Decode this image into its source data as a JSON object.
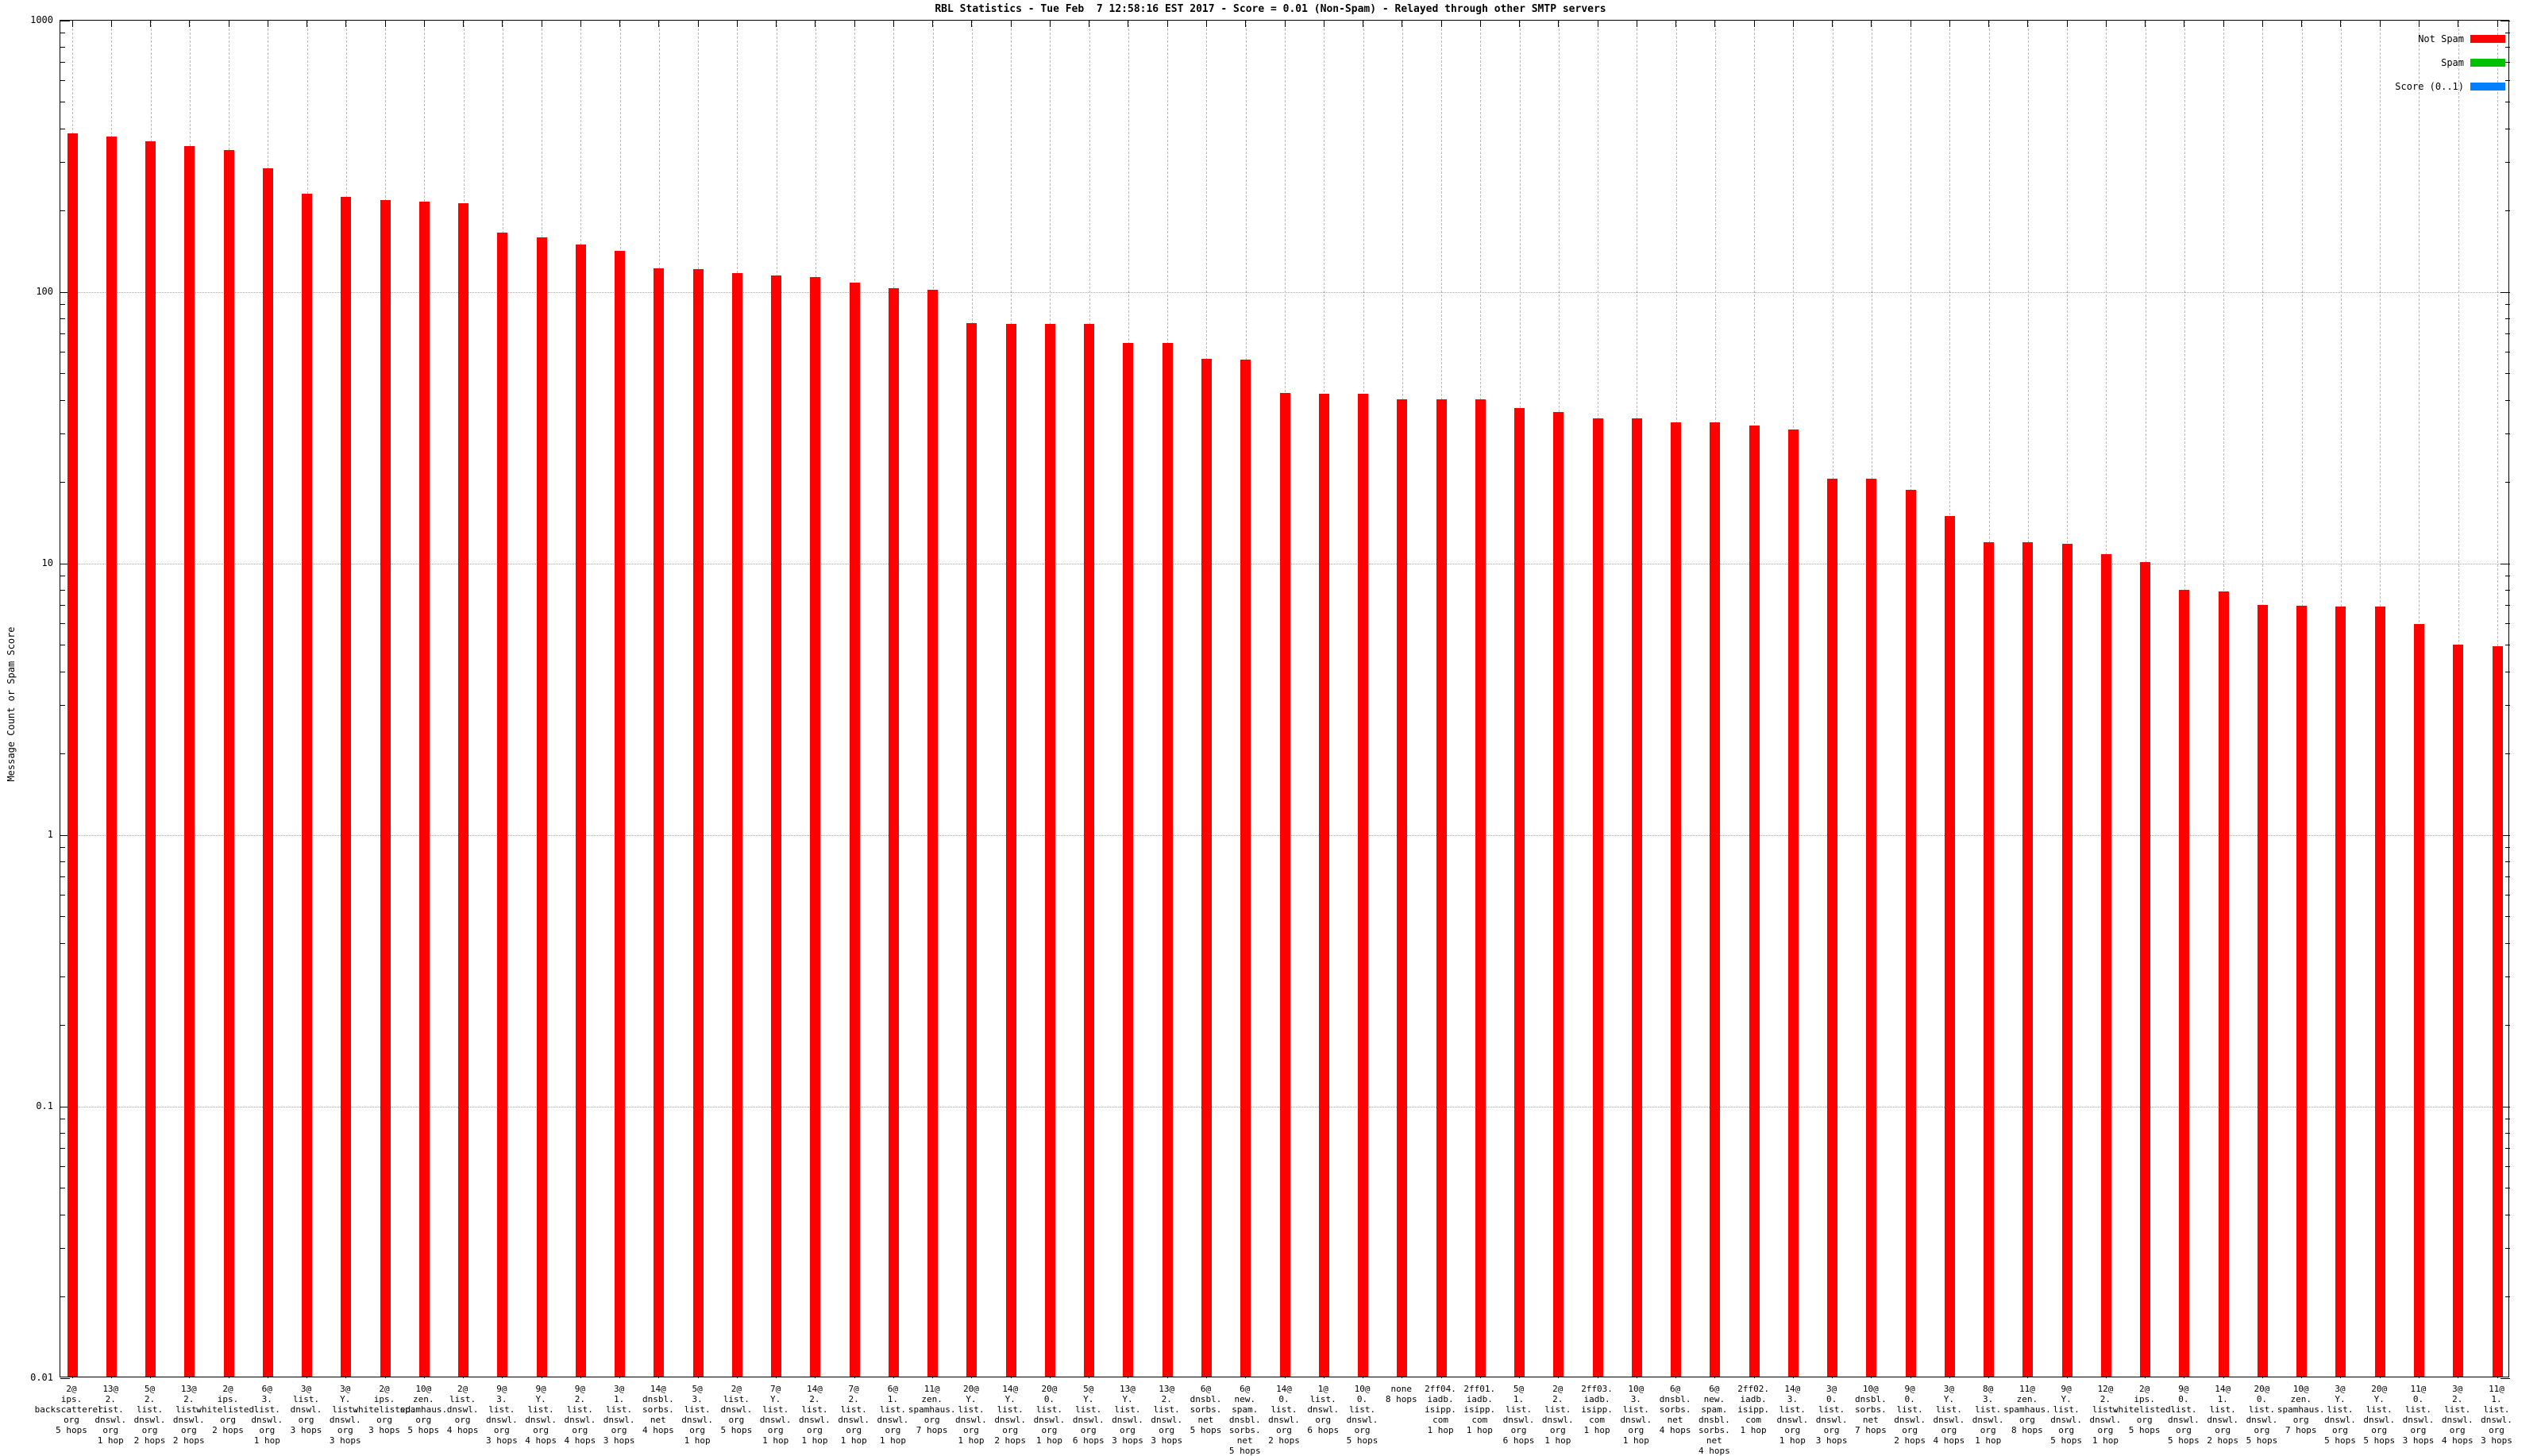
{
  "title": "RBL Statistics - Tue Feb  7 12:58:16 EST 2017 - Score = 0.01 (Non-Spam) - Relayed through other SMTP servers",
  "y_axis": {
    "label": "Message Count or Spam Score",
    "scale": "log",
    "min": 0.01,
    "max": 1000,
    "tick_labels": [
      "1000",
      "100",
      "10",
      "1",
      "0.1",
      "0.01"
    ]
  },
  "legend": [
    {
      "label": "Not Spam",
      "color": "#ff0000"
    },
    {
      "label": "Spam",
      "color": "#00c000"
    },
    {
      "label": "Score (0..1)",
      "color": "#0080ff"
    }
  ],
  "chart_data": {
    "type": "bar",
    "title": "RBL Statistics - Tue Feb  7 12:58:16 EST 2017 - Score = 0.01 (Non-Spam) - Relayed through other SMTP servers",
    "xlabel": "",
    "ylabel": "Message Count or Spam Score",
    "yscale": "log",
    "ylim": [
      0.01,
      1000
    ],
    "grid": true,
    "legend_position": "top-right",
    "bar_color": "#ff0000",
    "gridline_values": [
      100,
      10,
      1,
      0.1
    ],
    "bars": [
      {
        "label": "2@ips.backscatterer.org 5 hops",
        "lines": [
          "2@",
          "ips.",
          "backscatterer.",
          "org",
          "5 hops"
        ],
        "value": 380
      },
      {
        "label": "13@2.list.dnswl.org 1 hop",
        "lines": [
          "13@",
          "2.",
          "list.",
          "dnswl.",
          "org",
          "1 hop"
        ],
        "value": 370
      },
      {
        "label": "5@2.list.dnswl.org 2 hops",
        "lines": [
          "5@",
          "2.",
          "list.",
          "dnswl.",
          "org",
          "2 hops"
        ],
        "value": 355
      },
      {
        "label": "13@2.list.dnswl.org 2 hops",
        "lines": [
          "13@",
          "2.",
          "list.",
          "dnswl.",
          "org",
          "2 hops"
        ],
        "value": 340
      },
      {
        "label": "2@ips.whitelisted.org 2 hops",
        "lines": [
          "2@",
          "ips.",
          "whitelisted.",
          "org",
          "2 hops"
        ],
        "value": 330
      },
      {
        "label": "6@3.list.dnswl.org 1 hop",
        "lines": [
          "6@",
          "3.",
          "list.",
          "dnswl.",
          "org",
          "1 hop"
        ],
        "value": 283
      },
      {
        "label": "3@list.dnswl.org 3 hops",
        "lines": [
          "3@",
          "list.",
          "dnswl.",
          "org",
          "3 hops"
        ],
        "value": 227
      },
      {
        "label": "3@Y.list.dnswl.org 3 hops",
        "lines": [
          "3@",
          "Y.",
          "list.",
          "dnswl.",
          "org",
          "3 hops"
        ],
        "value": 222
      },
      {
        "label": "2@ips.whitelisted.org 3 hops",
        "lines": [
          "2@",
          "ips.",
          "whitelisted.",
          "org",
          "3 hops"
        ],
        "value": 216
      },
      {
        "label": "10@zen.spamhaus.org 5 hops",
        "lines": [
          "10@",
          "zen.",
          "spamhaus.",
          "org",
          "5 hops"
        ],
        "value": 212
      },
      {
        "label": "2@list.dnswl.org 4 hops",
        "lines": [
          "2@",
          "list.",
          "dnswl.",
          "org",
          "4 hops"
        ],
        "value": 210
      },
      {
        "label": "9@3.list.dnswl.org 3 hops",
        "lines": [
          "9@",
          "3.",
          "list.",
          "dnswl.",
          "org",
          "3 hops"
        ],
        "value": 163
      },
      {
        "label": "9@Y.list.dnswl.org 4 hops",
        "lines": [
          "9@",
          "Y.",
          "list.",
          "dnswl.",
          "org",
          "4 hops"
        ],
        "value": 157
      },
      {
        "label": "9@2.list.dnswl.org 4 hops",
        "lines": [
          "9@",
          "2.",
          "list.",
          "dnswl.",
          "org",
          "4 hops"
        ],
        "value": 148
      },
      {
        "label": "3@1.list.dnswl.org 3 hops",
        "lines": [
          "3@",
          "1.",
          "list.",
          "dnswl.",
          "org",
          "3 hops"
        ],
        "value": 140
      },
      {
        "label": "14@dnsbl.sorbs.net 4 hops",
        "lines": [
          "14@",
          "dnsbl.",
          "sorbs.",
          "net",
          "4 hops"
        ],
        "value": 121
      },
      {
        "label": "5@3.list.dnswl.org 1 hop",
        "lines": [
          "5@",
          "3.",
          "list.",
          "dnswl.",
          "org",
          "1 hop"
        ],
        "value": 120
      },
      {
        "label": "2@list.dnswl.org 5 hops",
        "lines": [
          "2@",
          "list.",
          "dnswl.",
          "org",
          "5 hops"
        ],
        "value": 116
      },
      {
        "label": "7@Y.list.dnswl.org 1 hop",
        "lines": [
          "7@",
          "Y.",
          "list.",
          "dnswl.",
          "org",
          "1 hop"
        ],
        "value": 114
      },
      {
        "label": "14@2.list.dnswl.org 1 hop",
        "lines": [
          "14@",
          "2.",
          "list.",
          "dnswl.",
          "org",
          "1 hop"
        ],
        "value": 112
      },
      {
        "label": "7@2.list.dnswl.org 1 hop",
        "lines": [
          "7@",
          "2.",
          "list.",
          "dnswl.",
          "org",
          "1 hop"
        ],
        "value": 107
      },
      {
        "label": "6@1.list.dnswl.org 1 hop",
        "lines": [
          "6@",
          "1.",
          "list.",
          "dnswl.",
          "org",
          "1 hop"
        ],
        "value": 102
      },
      {
        "label": "11@zen.spamhaus.org 7 hops",
        "lines": [
          "11@",
          "zen.",
          "spamhaus.",
          "org",
          "7 hops"
        ],
        "value": 101
      },
      {
        "label": "20@Y.list.dnswl.org 1 hop",
        "lines": [
          "20@",
          "Y.",
          "list.",
          "dnswl.",
          "org",
          "1 hop"
        ],
        "value": 76
      },
      {
        "label": "14@Y.list.dnswl.org 2 hops",
        "lines": [
          "14@",
          "Y.",
          "list.",
          "dnswl.",
          "org",
          "2 hops"
        ],
        "value": 75.5
      },
      {
        "label": "20@0.list.dnswl.org 1 hop",
        "lines": [
          "20@",
          "0.",
          "list.",
          "dnswl.",
          "org",
          "1 hop"
        ],
        "value": 75.5
      },
      {
        "label": "5@Y.list.dnswl.org 6 hops",
        "lines": [
          "5@",
          "Y.",
          "list.",
          "dnswl.",
          "org",
          "6 hops"
        ],
        "value": 75.5
      },
      {
        "label": "13@Y.list.dnswl.org 3 hops",
        "lines": [
          "13@",
          "Y.",
          "list.",
          "dnswl.",
          "org",
          "3 hops"
        ],
        "value": 64
      },
      {
        "label": "13@2.list.dnswl.org 3 hops",
        "lines": [
          "13@",
          "2.",
          "list.",
          "dnswl.",
          "org",
          "3 hops"
        ],
        "value": 64
      },
      {
        "label": "6@dnsbl.sorbs.net 5 hops",
        "lines": [
          "6@",
          "dnsbl.",
          "sorbs.",
          "net",
          "5 hops"
        ],
        "value": 56
      },
      {
        "label": "6@new.spam.dnsbl.sorbs.net 5 hops",
        "lines": [
          "6@",
          "new.",
          "spam.",
          "dnsbl.",
          "sorbs.",
          "net",
          "5 hops"
        ],
        "value": 55.5
      },
      {
        "label": "14@0.list.dnswl.org 2 hops",
        "lines": [
          "14@",
          "0.",
          "list.",
          "dnswl.",
          "org",
          "2 hops"
        ],
        "value": 42
      },
      {
        "label": "1@list.dnswl.org 6 hops",
        "lines": [
          "1@",
          "list.",
          "dnswl.",
          "org",
          "6 hops"
        ],
        "value": 41.6
      },
      {
        "label": "10@0.list.dnswl.org 5 hops",
        "lines": [
          "10@",
          "0.",
          "list.",
          "dnswl.",
          "org",
          "5 hops"
        ],
        "value": 41.6
      },
      {
        "label": "none 8 hops",
        "lines": [
          "none",
          "8 hops"
        ],
        "value": 39.7
      },
      {
        "label": "2ff04.iadb.isipp.com 1 hop",
        "lines": [
          "2ff04.",
          "iadb.",
          "isipp.",
          "com",
          "1 hop"
        ],
        "value": 39.7
      },
      {
        "label": "2ff01.iadb.isipp.com 1 hop",
        "lines": [
          "2ff01.",
          "iadb.",
          "isipp.",
          "com",
          "1 hop"
        ],
        "value": 39.7
      },
      {
        "label": "5@1.list.dnswl.org 6 hops",
        "lines": [
          "5@",
          "1.",
          "list.",
          "dnswl.",
          "org",
          "6 hops"
        ],
        "value": 36.8
      },
      {
        "label": "2@2.list.dnswl.org 1 hop",
        "lines": [
          "2@",
          "2.",
          "list.",
          "dnswl.",
          "org",
          "1 hop"
        ],
        "value": 35.8
      },
      {
        "label": "2ff03.iadb.isipp.com 1 hop",
        "lines": [
          "2ff03.",
          "iadb.",
          "isipp.",
          "com",
          "1 hop"
        ],
        "value": 33.9
      },
      {
        "label": "10@3.list.dnswl.org 1 hop",
        "lines": [
          "10@",
          "3.",
          "list.",
          "dnswl.",
          "org",
          "1 hop"
        ],
        "value": 33.9
      },
      {
        "label": "6@dnsbl.sorbs.net 4 hops",
        "lines": [
          "6@",
          "dnsbl.",
          "sorbs.",
          "net",
          "4 hops"
        ],
        "value": 32.8
      },
      {
        "label": "6@new.spam.dnsbl.sorbs.net 4 hops",
        "lines": [
          "6@",
          "new.",
          "spam.",
          "dnsbl.",
          "sorbs.",
          "net",
          "4 hops"
        ],
        "value": 32.8
      },
      {
        "label": "2ff02.iadb.isipp.com 1 hop",
        "lines": [
          "2ff02.",
          "iadb.",
          "isipp.",
          "com",
          "1 hop"
        ],
        "value": 31.9
      },
      {
        "label": "14@3.list.dnswl.org 1 hop",
        "lines": [
          "14@",
          "3.",
          "list.",
          "dnswl.",
          "org",
          "1 hop"
        ],
        "value": 30.8
      },
      {
        "label": "3@0.list.dnswl.org 3 hops",
        "lines": [
          "3@",
          "0.",
          "list.",
          "dnswl.",
          "org",
          "3 hops"
        ],
        "value": 20.3
      },
      {
        "label": "10@dnsbl.sorbs.net 7 hops",
        "lines": [
          "10@",
          "dnsbl.",
          "sorbs.",
          "net",
          "7 hops"
        ],
        "value": 20.3
      },
      {
        "label": "9@0.list.dnswl.org 2 hops",
        "lines": [
          "9@",
          "0.",
          "list.",
          "dnswl.",
          "org",
          "2 hops"
        ],
        "value": 18.4
      },
      {
        "label": "3@Y.list.dnswl.org 4 hops",
        "lines": [
          "3@",
          "Y.",
          "list.",
          "dnswl.",
          "org",
          "4 hops"
        ],
        "value": 14.8
      },
      {
        "label": "8@3.list.dnswl.org 1 hop",
        "lines": [
          "8@",
          "3.",
          "list.",
          "dnswl.",
          "org",
          "1 hop"
        ],
        "value": 11.8
      },
      {
        "label": "11@zen.spamhaus.org 8 hops",
        "lines": [
          "11@",
          "zen.",
          "spamhaus.",
          "org",
          "8 hops"
        ],
        "value": 11.8
      },
      {
        "label": "9@Y.list.dnswl.org 5 hops",
        "lines": [
          "9@",
          "Y.",
          "list.",
          "dnswl.",
          "org",
          "5 hops"
        ],
        "value": 11.7
      },
      {
        "label": "12@2.list.dnswl.org 1 hop",
        "lines": [
          "12@",
          "2.",
          "list.",
          "dnswl.",
          "org",
          "1 hop"
        ],
        "value": 10.7
      },
      {
        "label": "2@ips.whitelisted.org 5 hops",
        "lines": [
          "2@",
          "ips.",
          "whitelisted.",
          "org",
          "5 hops"
        ],
        "value": 10
      },
      {
        "label": "9@0.list.dnswl.org 5 hops",
        "lines": [
          "9@",
          "0.",
          "list.",
          "dnswl.",
          "org",
          "5 hops"
        ],
        "value": 7.9
      },
      {
        "label": "14@1.list.dnswl.org 2 hops",
        "lines": [
          "14@",
          "1.",
          "list.",
          "dnswl.",
          "org",
          "2 hops"
        ],
        "value": 7.8
      },
      {
        "label": "20@0.list.dnswl.org 5 hops",
        "lines": [
          "20@",
          "0.",
          "list.",
          "dnswl.",
          "org",
          "5 hops"
        ],
        "value": 6.95
      },
      {
        "label": "10@zen.spamhaus.org 7 hops",
        "lines": [
          "10@",
          "zen.",
          "spamhaus.",
          "org",
          "7 hops"
        ],
        "value": 6.9
      },
      {
        "label": "3@Y.list.dnswl.org 5 hops",
        "lines": [
          "3@",
          "Y.",
          "list.",
          "dnswl.",
          "org",
          "5 hops"
        ],
        "value": 6.85
      },
      {
        "label": "20@Y.list.dnswl.org 5 hops",
        "lines": [
          "20@",
          "Y.",
          "list.",
          "dnswl.",
          "org",
          "5 hops"
        ],
        "value": 6.85
      },
      {
        "label": "11@0.list.dnswl.org 3 hops",
        "lines": [
          "11@",
          "0.",
          "list.",
          "dnswl.",
          "org",
          "3 hops"
        ],
        "value": 5.9
      },
      {
        "label": "3@2.list.dnswl.org 4 hops",
        "lines": [
          "3@",
          "2.",
          "list.",
          "dnswl.",
          "org",
          "4 hops"
        ],
        "value": 4.95
      },
      {
        "label": "11@1.list.dnswl.org 3 hops",
        "lines": [
          "11@",
          "1.",
          "list.",
          "dnswl.",
          "org",
          "3 hops"
        ],
        "value": 4.9
      }
    ]
  }
}
